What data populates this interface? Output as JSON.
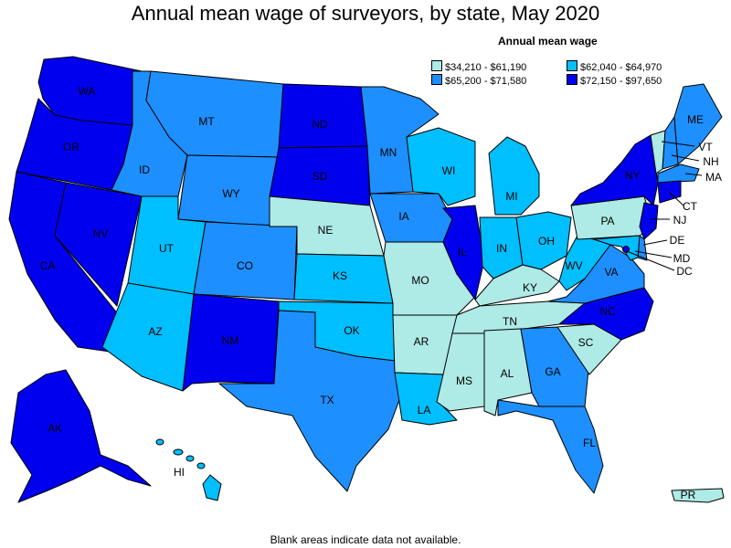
{
  "title": "Annual mean wage of surveyors, by state, May 2020",
  "legend": {
    "title": "Annual mean wage",
    "items": [
      {
        "range": "$34,210 - $61,190",
        "color": "#aeeae6"
      },
      {
        "range": "$62,040 - $64,970",
        "color": "#00bfff"
      },
      {
        "range": "$65,200 - $71,580",
        "color": "#1e8fff"
      },
      {
        "range": "$72,150 - $97,650",
        "color": "#0000ee"
      }
    ]
  },
  "states": [
    {
      "abbr": "WA",
      "tier": 4
    },
    {
      "abbr": "OR",
      "tier": 4
    },
    {
      "abbr": "CA",
      "tier": 4
    },
    {
      "abbr": "NV",
      "tier": 4
    },
    {
      "abbr": "ID",
      "tier": 3
    },
    {
      "abbr": "MT",
      "tier": 3
    },
    {
      "abbr": "WY",
      "tier": 3
    },
    {
      "abbr": "UT",
      "tier": 2
    },
    {
      "abbr": "AZ",
      "tier": 2
    },
    {
      "abbr": "CO",
      "tier": 3
    },
    {
      "abbr": "NM",
      "tier": 4
    },
    {
      "abbr": "ND",
      "tier": 4
    },
    {
      "abbr": "SD",
      "tier": 4
    },
    {
      "abbr": "NE",
      "tier": 1
    },
    {
      "abbr": "KS",
      "tier": 2
    },
    {
      "abbr": "OK",
      "tier": 2
    },
    {
      "abbr": "TX",
      "tier": 3
    },
    {
      "abbr": "MN",
      "tier": 3
    },
    {
      "abbr": "IA",
      "tier": 3
    },
    {
      "abbr": "MO",
      "tier": 1
    },
    {
      "abbr": "AR",
      "tier": 1
    },
    {
      "abbr": "LA",
      "tier": 2
    },
    {
      "abbr": "WI",
      "tier": 2
    },
    {
      "abbr": "IL",
      "tier": 4
    },
    {
      "abbr": "MI",
      "tier": 2
    },
    {
      "abbr": "IN",
      "tier": 2
    },
    {
      "abbr": "OH",
      "tier": 2
    },
    {
      "abbr": "KY",
      "tier": 1
    },
    {
      "abbr": "TN",
      "tier": 1
    },
    {
      "abbr": "MS",
      "tier": 1
    },
    {
      "abbr": "AL",
      "tier": 1
    },
    {
      "abbr": "GA",
      "tier": 3
    },
    {
      "abbr": "FL",
      "tier": 3
    },
    {
      "abbr": "SC",
      "tier": 1
    },
    {
      "abbr": "NC",
      "tier": 4
    },
    {
      "abbr": "VA",
      "tier": 3
    },
    {
      "abbr": "WV",
      "tier": 2
    },
    {
      "abbr": "PA",
      "tier": 1
    },
    {
      "abbr": "NY",
      "tier": 4
    },
    {
      "abbr": "VT",
      "tier": 1
    },
    {
      "abbr": "NH",
      "tier": 3
    },
    {
      "abbr": "ME",
      "tier": 3
    },
    {
      "abbr": "MA",
      "tier": 3
    },
    {
      "abbr": "CT",
      "tier": 4
    },
    {
      "abbr": "NJ",
      "tier": 4
    },
    {
      "abbr": "DE",
      "tier": 3
    },
    {
      "abbr": "MD",
      "tier": 2
    },
    {
      "abbr": "DC",
      "tier": 4
    },
    {
      "abbr": "AK",
      "tier": 4
    },
    {
      "abbr": "HI",
      "tier": 2
    },
    {
      "abbr": "PR",
      "tier": 1
    }
  ],
  "footnote": "Blank areas indicate data not available."
}
